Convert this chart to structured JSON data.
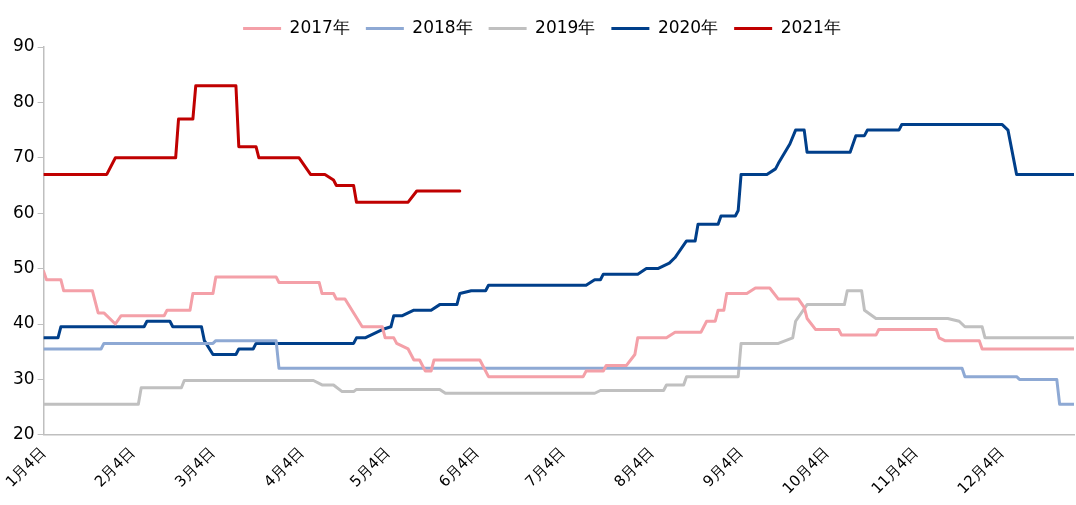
{
  "chart_data": {
    "type": "line",
    "legend": "top",
    "grid": false,
    "marker": "none",
    "line_style": "solid",
    "xlim": [
      "--01-04",
      "--12-29"
    ],
    "xticks": [
      {
        "value": "--01-04",
        "label": "1月4日"
      },
      {
        "value": "--02-04",
        "label": "2月4日"
      },
      {
        "value": "--03-04",
        "label": "3月4日"
      },
      {
        "value": "--04-04",
        "label": "4月4日"
      },
      {
        "value": "--05-04",
        "label": "5月4日"
      },
      {
        "value": "--06-04",
        "label": "6月4日"
      },
      {
        "value": "--07-04",
        "label": "7月4日"
      },
      {
        "value": "--08-04",
        "label": "8月4日"
      },
      {
        "value": "--09-04",
        "label": "9月4日"
      },
      {
        "value": "--10-04",
        "label": "10月4日"
      },
      {
        "value": "--11-04",
        "label": "11月4日"
      },
      {
        "value": "--12-04",
        "label": "12月4日"
      }
    ],
    "ylim": [
      20,
      90
    ],
    "yticks": [
      20,
      30,
      40,
      50,
      60,
      70,
      80,
      90
    ],
    "series": [
      {
        "name": "2017年",
        "color": "#f4a0a8",
        "x": [
          "--01-04",
          "--01-05",
          "--01-10",
          "--01-11",
          "--01-21",
          "--01-23",
          "--01-25",
          "--01-29",
          "--01-31",
          "--02-15",
          "--02-16",
          "--02-24",
          "--02-25",
          "--03-04",
          "--03-05",
          "--03-26",
          "--03-27",
          "--04-10",
          "--04-11",
          "--04-15",
          "--04-16",
          "--04-19",
          "--04-25",
          "--05-02",
          "--05-03",
          "--05-06",
          "--05-07",
          "--05-11",
          "--05-13",
          "--05-15",
          "--05-17",
          "--05-19",
          "--05-20",
          "--06-05",
          "--06-08",
          "--07-11",
          "--07-12",
          "--07-18",
          "--07-19",
          "--07-26",
          "--07-29",
          "--07-30",
          "--08-09",
          "--08-12",
          "--08-21",
          "--08-23",
          "--08-26",
          "--08-27",
          "--08-29",
          "--08-30",
          "--09-06",
          "--09-09",
          "--09-14",
          "--09-17",
          "--09-24",
          "--09-26",
          "--09-27",
          "--09-30",
          "--10-08",
          "--10-09",
          "--10-21",
          "--10-22",
          "--11-11",
          "--11-12",
          "--11-14",
          "--11-26",
          "--11-27",
          "--12-29"
        ],
        "values": [
          49.5,
          48,
          48,
          46,
          46,
          42,
          42,
          40,
          41.5,
          41.5,
          42.5,
          42.5,
          45.5,
          45.5,
          48.5,
          48.5,
          47.5,
          47.5,
          45.5,
          45.5,
          44.5,
          44.5,
          39.5,
          39.5,
          37.5,
          37.5,
          36.5,
          35.5,
          33.5,
          33.5,
          31.5,
          31.5,
          33.5,
          33.5,
          30.5,
          30.5,
          31.5,
          31.5,
          32.5,
          32.5,
          34.5,
          37.5,
          37.5,
          38.5,
          38.5,
          40.5,
          40.5,
          42.5,
          42.5,
          45.5,
          45.5,
          46.5,
          46.5,
          44.5,
          44.5,
          43,
          41,
          39,
          39,
          38,
          38,
          39,
          39,
          37.5,
          37,
          37,
          35.5,
          35.5
        ]
      },
      {
        "name": "2018年",
        "color": "#8ea9d4",
        "x": [
          "--01-04",
          "--01-24",
          "--01-25",
          "--03-04",
          "--03-05",
          "--03-26",
          "--03-27",
          "--11-20",
          "--11-21",
          "--12-09",
          "--12-10",
          "--12-23",
          "--12-24",
          "--12-29"
        ],
        "values": [
          35.5,
          35.5,
          36.5,
          36.5,
          37,
          37,
          32,
          32,
          30.5,
          30.5,
          30,
          30,
          25.5,
          25.5
        ]
      },
      {
        "name": "2019年",
        "color": "#c0c0c0",
        "x": [
          "--01-04",
          "--02-06",
          "--02-07",
          "--02-21",
          "--02-22",
          "--04-08",
          "--04-11",
          "--04-15",
          "--04-18",
          "--04-22",
          "--04-23",
          "--05-22",
          "--05-24",
          "--07-15",
          "--07-17",
          "--08-08",
          "--08-09",
          "--08-15",
          "--08-16",
          "--09-03",
          "--09-04",
          "--09-17",
          "--09-22",
          "--09-23",
          "--09-27",
          "--10-10",
          "--10-11",
          "--10-16",
          "--10-17",
          "--10-21",
          "--11-15",
          "--11-19",
          "--11-21",
          "--11-27",
          "--11-28",
          "--12-29"
        ],
        "values": [
          25.5,
          25.5,
          28.5,
          28.5,
          29.8,
          29.8,
          29,
          29,
          27.8,
          27.8,
          28.2,
          28.2,
          27.5,
          27.5,
          28,
          28,
          29,
          29,
          30.5,
          30.5,
          36.5,
          36.5,
          37.5,
          40.5,
          43.5,
          43.5,
          46,
          46,
          42.5,
          41,
          41,
          40.5,
          39.5,
          39.5,
          37.5,
          37.5
        ]
      },
      {
        "name": "2020年",
        "color": "#003f8a",
        "x": [
          "--01-04",
          "--01-09",
          "--01-10",
          "--02-08",
          "--02-09",
          "--02-17",
          "--02-18",
          "--02-28",
          "--03-01",
          "--03-04",
          "--03-12",
          "--03-13",
          "--03-18",
          "--03-19",
          "--04-22",
          "--04-23",
          "--04-26",
          "--05-02",
          "--05-05",
          "--05-06",
          "--05-09",
          "--05-13",
          "--05-19",
          "--05-22",
          "--05-28",
          "--05-29",
          "--06-02",
          "--06-07",
          "--06-08",
          "--07-12",
          "--07-15",
          "--07-17",
          "--07-18",
          "--07-30",
          "--08-02",
          "--08-06",
          "--08-08",
          "--08-10",
          "--08-12",
          "--08-16",
          "--08-19",
          "--08-20",
          "--08-27",
          "--08-28",
          "--09-02",
          "--09-03",
          "--09-04",
          "--09-13",
          "--09-16",
          "--09-17",
          "--09-21",
          "--09-23",
          "--09-26",
          "--09-27",
          "--10-12",
          "--10-14",
          "--10-17",
          "--10-18",
          "--10-29",
          "--10-30",
          "--12-04",
          "--12-06",
          "--12-09",
          "--12-29"
        ],
        "values": [
          37.5,
          37.5,
          39.5,
          39.5,
          40.5,
          40.5,
          39.5,
          39.5,
          37,
          34.5,
          34.5,
          35.5,
          35.5,
          36.5,
          36.5,
          37.5,
          37.5,
          39,
          39.5,
          41.5,
          41.5,
          42.5,
          42.5,
          43.5,
          43.5,
          45.5,
          46,
          46,
          47,
          47,
          48,
          48,
          49,
          49,
          50,
          50,
          50.5,
          51,
          52,
          55,
          55,
          58,
          58,
          59.5,
          59.5,
          60.5,
          67,
          67,
          68,
          69,
          72.5,
          75,
          75,
          71,
          71,
          74,
          74,
          75,
          75,
          76,
          76,
          75,
          67,
          67
        ]
      },
      {
        "name": "2021年",
        "color": "#c00000",
        "x": [
          "--01-04",
          "--01-26",
          "--01-29",
          "--02-19",
          "--02-20",
          "--02-25",
          "--02-26",
          "--03-12",
          "--03-13",
          "--03-19",
          "--03-20",
          "--04-03",
          "--04-07",
          "--04-12",
          "--04-15",
          "--04-16",
          "--04-22",
          "--04-23",
          "--05-11",
          "--05-14",
          "--05-29"
        ],
        "values": [
          67,
          67,
          70,
          70,
          77,
          77,
          83,
          83,
          72,
          72,
          70,
          70,
          67,
          67,
          66,
          65,
          65,
          62,
          62,
          64,
          64
        ]
      }
    ]
  }
}
